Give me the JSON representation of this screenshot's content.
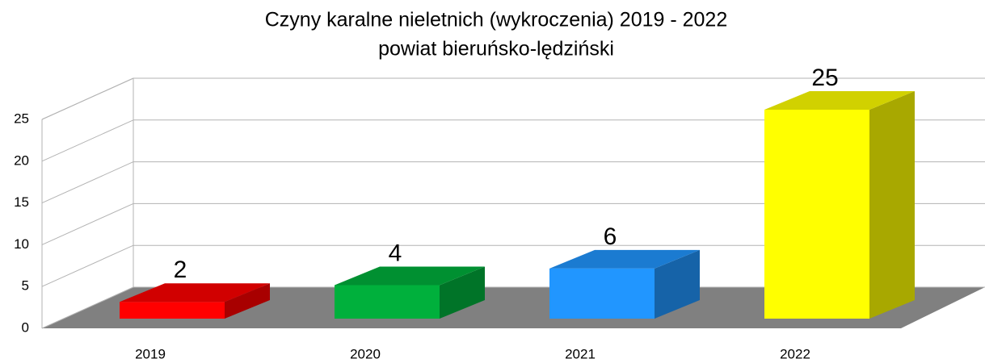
{
  "chart_data": {
    "type": "bar3d",
    "title": "Czyny karalne nieletnich (wykroczenia) 2019 - 2022",
    "subtitle": "powiat bieruńsko-lędziński",
    "categories": [
      "2019",
      "2020",
      "2021",
      "2022"
    ],
    "values": [
      2,
      4,
      6,
      25
    ],
    "colors": [
      "#ff0000",
      "#00b03c",
      "#2196ff",
      "#ffff00"
    ],
    "ylim": [
      0,
      25
    ],
    "yticks": [
      0,
      5,
      10,
      15,
      20,
      25
    ],
    "grid": true
  }
}
